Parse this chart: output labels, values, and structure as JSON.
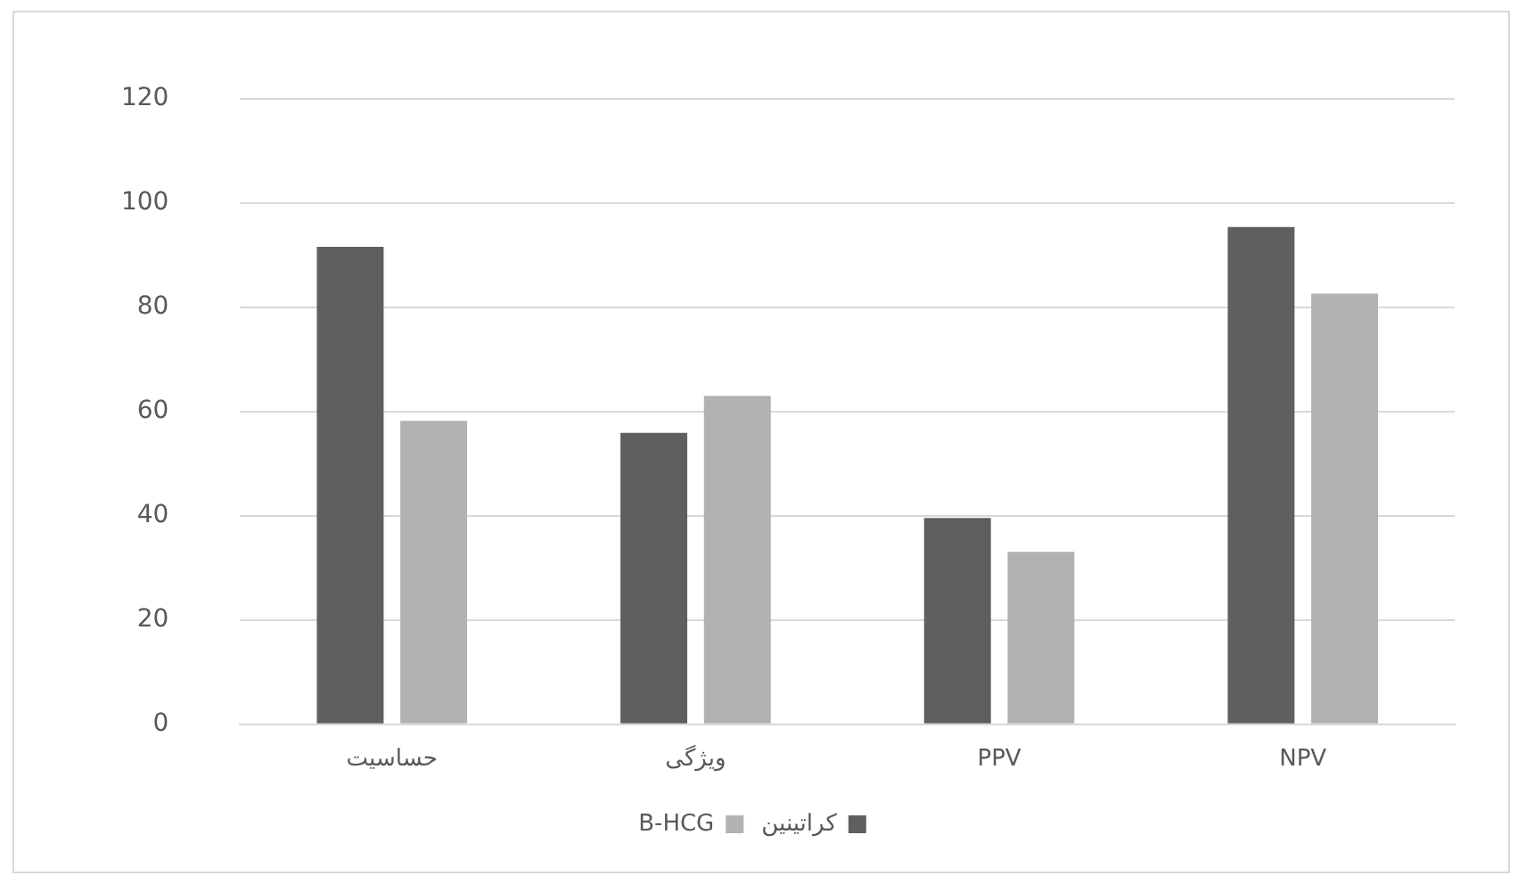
{
  "chart_data": {
    "type": "bar",
    "categories": [
      "حساسیت",
      "ویژگی",
      "PPV",
      "NPV"
    ],
    "series": [
      {
        "name": "کراتینین",
        "color": "#5f5f5f",
        "values": [
          91.6,
          55.9,
          39.6,
          95.4
        ]
      },
      {
        "name": "B-HCG",
        "color": "#b2b2b2",
        "values": [
          58.2,
          63.0,
          33.1,
          82.6
        ]
      }
    ],
    "ylim": [
      0,
      120
    ],
    "yticks": [
      0,
      20,
      40,
      60,
      80,
      100,
      120
    ],
    "grid": "y",
    "legend": "bottom"
  }
}
